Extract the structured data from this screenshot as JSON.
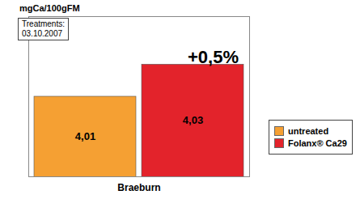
{
  "chart_data": {
    "type": "bar",
    "ylabel": "mgCa/100gFM",
    "text_box": [
      "Treatments:",
      "03.10.2007"
    ],
    "annotations": [
      "+0,5%"
    ],
    "categories": [
      "Braeburn"
    ],
    "series": [
      {
        "name": "untreated",
        "color": "#f5a033",
        "values": [
          4.01
        ],
        "value_labels": [
          "4,01"
        ]
      },
      {
        "name": "Folanx® Ca29",
        "color": "#e3232b",
        "values": [
          4.03
        ],
        "value_labels": [
          "4,03"
        ]
      }
    ],
    "ylim": [
      3.96,
      4.06
    ],
    "yticks": [],
    "grid": false,
    "legend": "right",
    "data_labels": true,
    "tick_labels": "x"
  }
}
